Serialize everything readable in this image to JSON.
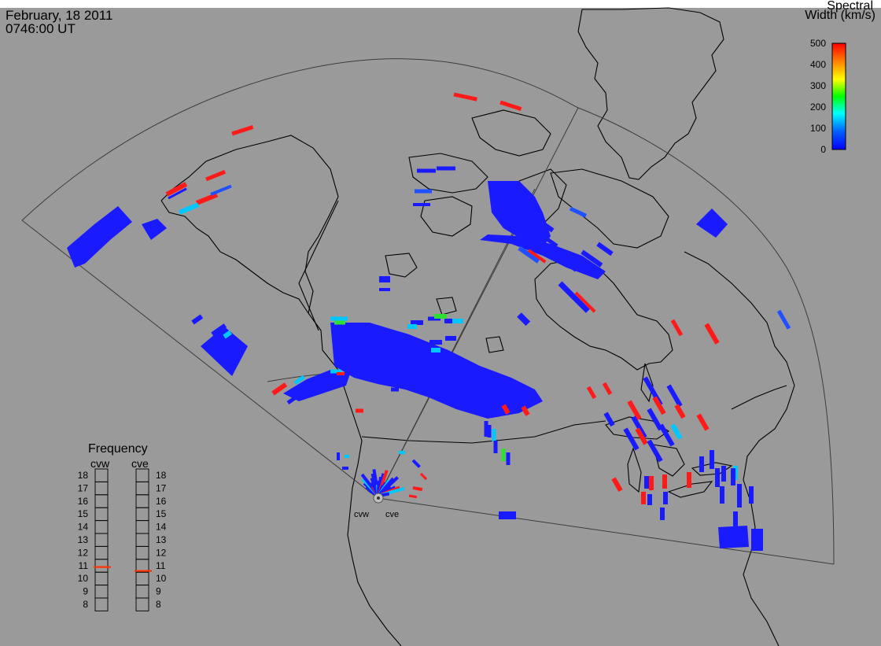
{
  "header": {
    "date": "February, 18 2011",
    "time": "0746:00 UT"
  },
  "colorbar": {
    "title_line1": "Spectral",
    "title_line2": "Width (km/s)",
    "ticks": [
      "500",
      "400",
      "300",
      "200",
      "100",
      "0"
    ],
    "range": [
      0,
      500
    ],
    "colors": [
      "#0000ff",
      "#00a0ff",
      "#00ffff",
      "#00ff00",
      "#ffff00",
      "#ff8000",
      "#ff0000"
    ]
  },
  "radar_sites": {
    "west": "cvw",
    "east": "cve"
  },
  "frequency_panel": {
    "title": "Frequency",
    "columns": [
      "cvw",
      "cve"
    ],
    "levels": [
      "18",
      "17",
      "16",
      "15",
      "14",
      "13",
      "12",
      "11",
      "10",
      "9",
      "8"
    ],
    "cvw_value_mhz": 10.9,
    "cve_value_mhz": 10.6,
    "marker_color": "#ff3300"
  },
  "map": {
    "background_color": "#9a9a9a",
    "coastline_color": "#000000",
    "field_of_view_color": "#3c3c3c"
  }
}
